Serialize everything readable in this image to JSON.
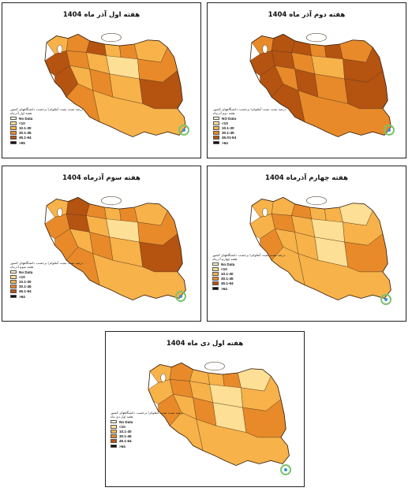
{
  "palette": {
    "no_data": "#fff6d5",
    "c1": "#fddf95",
    "c2": "#f7b24a",
    "c3": "#e88a2a",
    "c4": "#b55311",
    "c5": "#151010",
    "border": "#5a3a1a"
  },
  "panels": [
    {
      "id": "week1-azar",
      "title": "هفته اول آذر ماه 1404",
      "legend_heading": "درصد تست مثبت آنفلوانزا برحسب دانشگاههای کشور",
      "legend_sub": "هفته اول آذرماه",
      "legend_items": [
        {
          "label": "No Data",
          "color_key": "no_data"
        },
        {
          "label": "<10",
          "color_key": "c1"
        },
        {
          "label": "10.1-30",
          "color_key": "c2"
        },
        {
          "label": "30.1-45",
          "color_key": "c3"
        },
        {
          "label": "45.1-64",
          "color_key": "c4"
        },
        {
          "label": ">65",
          "color_key": "c5"
        }
      ],
      "fills": [
        "c2",
        "c3",
        "c4",
        "c2",
        "c3",
        "c2",
        "c4",
        "c3",
        "c2",
        "c1",
        "c3",
        "c4",
        "c2",
        "c3",
        "c2",
        "c4",
        "c3",
        "c2"
      ]
    },
    {
      "id": "week2-azar",
      "title": "هفته دوم آذر ماه 1404",
      "legend_heading": "درصد تست مثبت آنفلوانزا برحسب دانشگاههای کشور",
      "legend_sub": "هفته دوم آذرماه",
      "legend_items": [
        {
          "label": "NO Data",
          "color_key": "no_data"
        },
        {
          "label": "<10",
          "color_key": "c1"
        },
        {
          "label": "10.1-30",
          "color_key": "c2"
        },
        {
          "label": "30.1-45",
          "color_key": "c3"
        },
        {
          "label": "45.01-64",
          "color_key": "c4"
        },
        {
          "label": ">64",
          "color_key": "c5"
        }
      ],
      "fills": [
        "c3",
        "c4",
        "c4",
        "c3",
        "c4",
        "c3",
        "c4",
        "c4",
        "c3",
        "c2",
        "c4",
        "c4",
        "c3",
        "c4",
        "c3",
        "c4",
        "c4",
        "c3"
      ]
    },
    {
      "id": "week3-azar",
      "title": "هفته سوم آذرماه 1404",
      "legend_heading": "درصد تست مثبت آنفلوانزا برحسب دانشگاههای کشور",
      "legend_sub": "هفته سوم آذرماه",
      "legend_items": [
        {
          "label": "No Data",
          "color_key": "no_data"
        },
        {
          "label": "<10",
          "color_key": "c1"
        },
        {
          "label": "10.1-30",
          "color_key": "c2"
        },
        {
          "label": "30.1-45",
          "color_key": "c3"
        },
        {
          "label": "45.1-64",
          "color_key": "c4"
        },
        {
          "label": ">64",
          "color_key": "c5"
        }
      ],
      "fills": [
        "c2",
        "c4",
        "c3",
        "c2",
        "c3",
        "c2",
        "c3",
        "c4",
        "c2",
        "c1",
        "c3",
        "c3",
        "c2",
        "c3",
        "c2",
        "c4",
        "c3",
        "c2"
      ]
    },
    {
      "id": "week4-azar",
      "title": "هفته چهارم آذرماه 1404",
      "legend_heading": "درصد تست مثبت آنفلوانزا برحسب دانشگاههای کشور",
      "legend_sub": "هفته چهارم آذرماه",
      "legend_items": [
        {
          "label": "No Data",
          "color_key": "no_data"
        },
        {
          "label": "<10",
          "color_key": "c1"
        },
        {
          "label": "10.1-30",
          "color_key": "c2"
        },
        {
          "label": "30.1-45",
          "color_key": "c3"
        },
        {
          "label": "45.1-64",
          "color_key": "c4"
        },
        {
          "label": ">64",
          "color_key": "c5"
        }
      ],
      "fills": [
        "c2",
        "c2",
        "c3",
        "c2",
        "c2",
        "c1",
        "c2",
        "c3",
        "c2",
        "c1",
        "c2",
        "c3",
        "c2",
        "c2",
        "c1",
        "c3",
        "c2",
        "c2"
      ]
    },
    {
      "id": "week1-dey",
      "title": "هفته اول دی ماه 1404",
      "legend_heading": "درصد تست مثبت آنفلوانزا برحسب دانشگاههای کشور",
      "legend_sub": "هفته اول دی ماه",
      "legend_items": [
        {
          "label": "No Data",
          "color_key": "no_data"
        },
        {
          "label": "<10",
          "color_key": "c1"
        },
        {
          "label": "10.1-30",
          "color_key": "c2"
        },
        {
          "label": "30.1-45",
          "color_key": "c3"
        },
        {
          "label": "45.1-64",
          "color_key": "c4"
        },
        {
          "label": ">64",
          "color_key": "c5"
        }
      ],
      "fills": [
        "c2",
        "c3",
        "c2",
        "c2",
        "c3",
        "c1",
        "c2",
        "c3",
        "c2",
        "c1",
        "c2",
        "c3",
        "c2",
        "c3",
        "c1",
        "c3",
        "c2",
        "c2"
      ]
    }
  ]
}
